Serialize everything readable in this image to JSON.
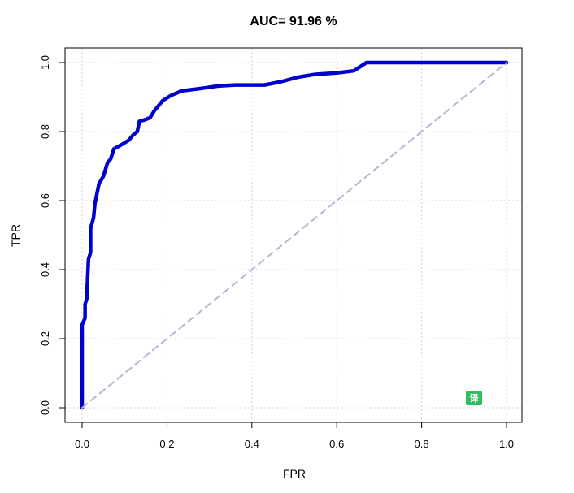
{
  "chart_data": {
    "type": "line",
    "title": "AUC= 91.96 %",
    "xlabel": "FPR",
    "ylabel": "TPR",
    "xlim": [
      0,
      1
    ],
    "ylim": [
      0,
      1
    ],
    "x_ticks": [
      "0.0",
      "0.2",
      "0.4",
      "0.6",
      "0.8",
      "1.0"
    ],
    "y_ticks": [
      "0.0",
      "0.2",
      "0.4",
      "0.6",
      "0.8",
      "1.0"
    ],
    "grid": true,
    "series": [
      {
        "color": "#0000cd",
        "points": [
          [
            0.0,
            0.0
          ],
          [
            0.0,
            0.24
          ],
          [
            0.007,
            0.26
          ],
          [
            0.007,
            0.3
          ],
          [
            0.012,
            0.32
          ],
          [
            0.012,
            0.35
          ],
          [
            0.015,
            0.43
          ],
          [
            0.02,
            0.45
          ],
          [
            0.02,
            0.52
          ],
          [
            0.027,
            0.55
          ],
          [
            0.03,
            0.59
          ],
          [
            0.035,
            0.62
          ],
          [
            0.04,
            0.65
          ],
          [
            0.05,
            0.67
          ],
          [
            0.055,
            0.69
          ],
          [
            0.06,
            0.71
          ],
          [
            0.067,
            0.72
          ],
          [
            0.075,
            0.75
          ],
          [
            0.09,
            0.76
          ],
          [
            0.11,
            0.775
          ],
          [
            0.12,
            0.79
          ],
          [
            0.13,
            0.8
          ],
          [
            0.135,
            0.83
          ],
          [
            0.145,
            0.833
          ],
          [
            0.16,
            0.84
          ],
          [
            0.17,
            0.86
          ],
          [
            0.19,
            0.89
          ],
          [
            0.21,
            0.905
          ],
          [
            0.235,
            0.918
          ],
          [
            0.28,
            0.925
          ],
          [
            0.32,
            0.932
          ],
          [
            0.36,
            0.935
          ],
          [
            0.43,
            0.935
          ],
          [
            0.47,
            0.945
          ],
          [
            0.51,
            0.958
          ],
          [
            0.55,
            0.966
          ],
          [
            0.6,
            0.97
          ],
          [
            0.64,
            0.976
          ],
          [
            0.67,
            1.0
          ],
          [
            1.0,
            1.0
          ]
        ]
      },
      {
        "color": "#b8b4d3",
        "style": "dashed",
        "points": [
          [
            0,
            0
          ],
          [
            1,
            1
          ]
        ]
      }
    ]
  },
  "badge": {
    "label": "译",
    "color": "#2dbe60"
  }
}
